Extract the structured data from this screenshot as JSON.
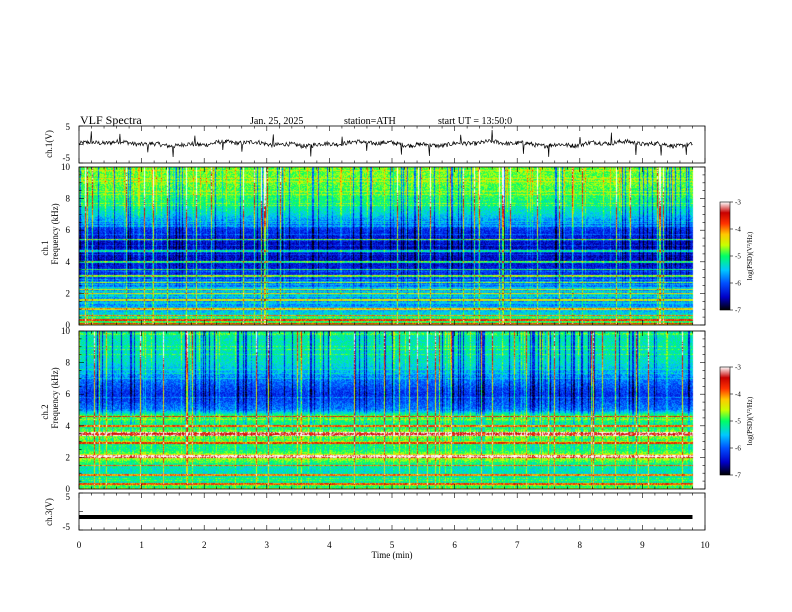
{
  "header": {
    "title": "VLF Spectra",
    "date": "Jan. 25, 2025",
    "station": "station=ATH",
    "start": "start UT =  13:50:0"
  },
  "chart_data": [
    {
      "type": "line",
      "name": "ch1-waveform",
      "ylabel": "ch.1(V)",
      "ylim": [
        -5,
        5
      ],
      "yticks": [
        "5",
        "-5"
      ],
      "xlim": [
        0,
        10
      ],
      "mean_value": 0.2,
      "spike_times_min": [
        0.2,
        0.65,
        1.1,
        1.5,
        1.85,
        2.3,
        2.6,
        3.1,
        3.7,
        4.2,
        4.6,
        5.15,
        5.6,
        6.1,
        6.6,
        7.1,
        7.5,
        8.0,
        8.5,
        8.9,
        9.3,
        9.7
      ]
    },
    {
      "type": "heatmap",
      "name": "ch1-spectrogram",
      "ylabel": "Frequency (kHz)",
      "channel_label": "ch.1",
      "ylim": [
        0,
        10
      ],
      "yticks": [
        "0",
        "2",
        "4",
        "6",
        "8",
        "10"
      ],
      "xlim": [
        0,
        10
      ],
      "level_by_frequency_khz": [
        [
          0.0,
          0.55
        ],
        [
          0.5,
          0.45
        ],
        [
          1.0,
          0.33
        ],
        [
          1.5,
          0.3
        ],
        [
          2.0,
          0.36
        ],
        [
          2.5,
          0.28
        ],
        [
          3.0,
          0.22
        ],
        [
          3.5,
          0.18
        ],
        [
          4.0,
          0.14
        ],
        [
          5.0,
          0.12
        ],
        [
          6.0,
          0.2
        ],
        [
          7.0,
          0.4
        ],
        [
          8.0,
          0.5
        ],
        [
          9.0,
          0.55
        ],
        [
          10.0,
          0.55
        ]
      ],
      "bright_lines_khz": [
        0.1,
        0.3,
        0.6,
        1.0,
        1.6,
        2.0,
        2.25,
        2.7,
        3.1,
        3.5,
        4.0,
        4.7,
        5.4
      ],
      "colorbar": {
        "label": "log(PSD)(V²/Hz)",
        "range": [
          -7,
          -3
        ],
        "ticks": [
          "-3",
          "-4",
          "-5",
          "-6",
          "-7"
        ]
      }
    },
    {
      "type": "heatmap",
      "name": "ch2-spectrogram",
      "ylabel": "Frequency (kHz)",
      "channel_label": "ch.2",
      "ylim": [
        0,
        10
      ],
      "yticks": [
        "0",
        "2",
        "4",
        "6",
        "8",
        "10"
      ],
      "xlim": [
        0,
        10
      ],
      "level_by_frequency_khz": [
        [
          0.0,
          0.5
        ],
        [
          0.5,
          0.45
        ],
        [
          1.0,
          0.42
        ],
        [
          1.5,
          0.45
        ],
        [
          2.0,
          0.62
        ],
        [
          2.5,
          0.48
        ],
        [
          3.0,
          0.5
        ],
        [
          3.5,
          0.6
        ],
        [
          4.0,
          0.45
        ],
        [
          4.6,
          0.55
        ],
        [
          5.0,
          0.3
        ],
        [
          6.0,
          0.2
        ],
        [
          7.0,
          0.3
        ],
        [
          8.0,
          0.42
        ],
        [
          10.0,
          0.45
        ]
      ],
      "bright_lines_khz": [
        0.3,
        0.9,
        1.5,
        2.0,
        2.1,
        2.9,
        3.4,
        3.55,
        4.0,
        4.6
      ],
      "colorbar": {
        "label": "log(PSD)(V²/Hz)",
        "range": [
          -7,
          -3
        ],
        "ticks": [
          "-3",
          "-4",
          "-5",
          "-6",
          "-7"
        ]
      }
    },
    {
      "type": "line",
      "name": "ch3-waveform",
      "ylabel": "ch.3(V)",
      "ylim": [
        -5,
        5
      ],
      "yticks": [
        "5",
        "-5"
      ],
      "xlim": [
        0,
        10
      ],
      "mean_value": -1.5,
      "xlabel": "Time (min)",
      "xticks": [
        "0",
        "1",
        "2",
        "3",
        "4",
        "5",
        "6",
        "7",
        "8",
        "9",
        "10"
      ]
    }
  ],
  "colors": {
    "colormap": [
      "#000000",
      "#0000c8",
      "#0050ff",
      "#00c8ff",
      "#00ff64",
      "#c8ff00",
      "#ffc800",
      "#ff3200",
      "#c80000",
      "#ffffff"
    ],
    "waveform": "#000000"
  }
}
